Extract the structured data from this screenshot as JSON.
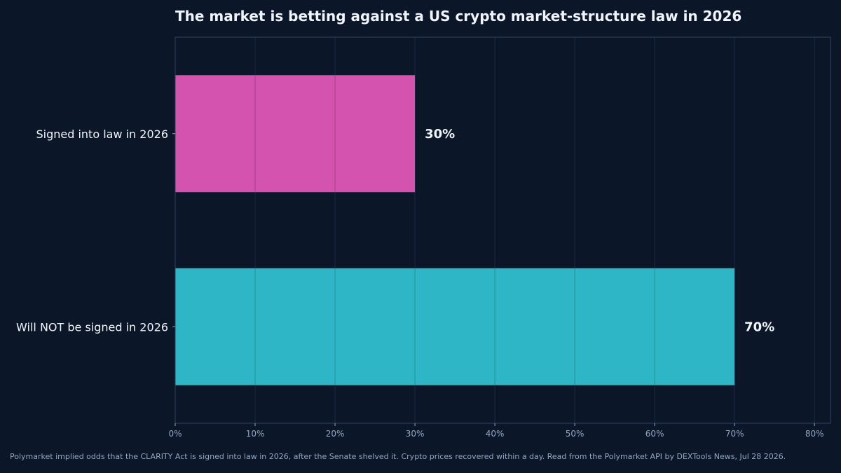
{
  "chart_data": {
    "type": "bar",
    "orientation": "horizontal",
    "title": "The market is betting against a US crypto market-structure law in 2026",
    "xlabel": "",
    "ylabel": "",
    "categories": [
      "Signed into law in 2026",
      "Will NOT be signed in 2026"
    ],
    "values": [
      30,
      70
    ],
    "value_labels": [
      "30%",
      "70%"
    ],
    "bar_colors": [
      "#d453ae",
      "#2eb6c6"
    ],
    "xlim": [
      0,
      82
    ],
    "x_ticks": [
      0,
      10,
      20,
      30,
      40,
      50,
      60,
      70,
      80
    ],
    "x_tick_labels": [
      "0%",
      "10%",
      "20%",
      "30%",
      "40%",
      "50%",
      "60%",
      "70%",
      "80%"
    ],
    "grid": "vertical",
    "legend": "none"
  },
  "footnote": "Polymarket implied odds that the CLARITY Act is signed into law in 2026, after the Senate shelved it. Crypto prices recovered within a day. Read from the Polymarket API by DEXTools News, Jul 28 2026.",
  "colors": {
    "background": "#0b1628",
    "grid": "#1a2a45",
    "axis": "#2c4063",
    "text": "#f1f5fb",
    "tick_text": "#94a6c2"
  }
}
